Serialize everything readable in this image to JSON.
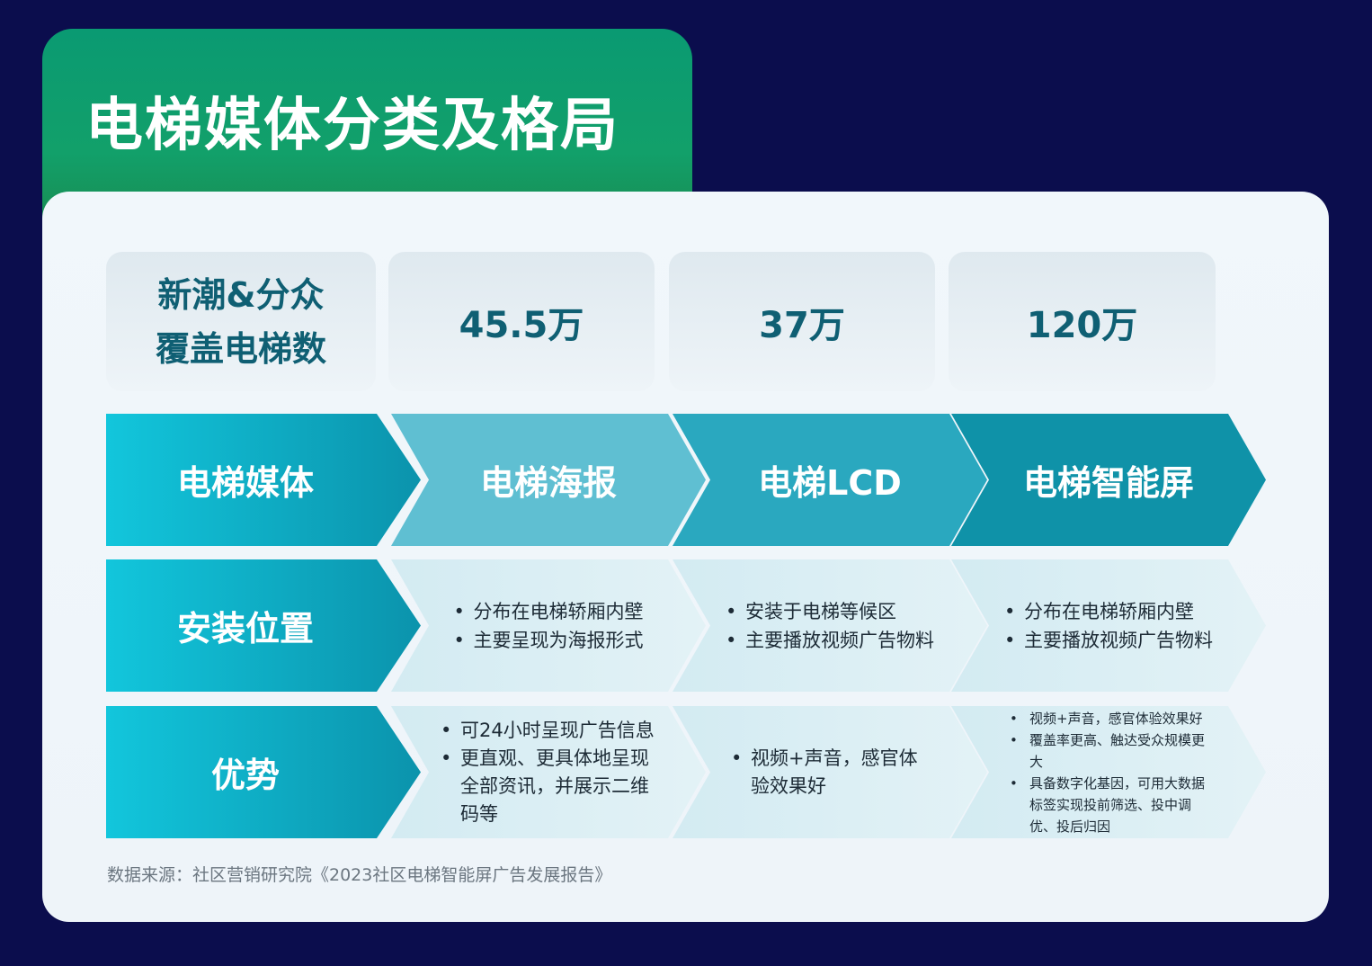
{
  "title": "电梯媒体分类及格局",
  "coverage": {
    "label_line1": "新潮&分众",
    "label_line2": "覆盖电梯数",
    "values": [
      "45.5万",
      "37万",
      "120万"
    ]
  },
  "rows": [
    {
      "header": "电梯媒体",
      "cells": [
        {
          "name": "电梯海报"
        },
        {
          "name": "电梯LCD"
        },
        {
          "name": "电梯智能屏"
        }
      ]
    },
    {
      "header": "安装位置",
      "cells": [
        [
          "分布在电梯轿厢内壁",
          "主要呈现为海报形式"
        ],
        [
          "安装于电梯等候区",
          "主要播放视频广告物料"
        ],
        [
          "分布在电梯轿厢内壁",
          "主要播放视频广告物料"
        ]
      ]
    },
    {
      "header": "优势",
      "cells": [
        [
          "可24小时呈现广告信息",
          "更直观、更具体地呈现全部资讯，并展示二维码等"
        ],
        [
          "视频+声音，感官体验效果好"
        ],
        [
          "视频+声音，感官体验效果好",
          "覆盖率更高、触达受众规模更大",
          "具备数字化基因，可用大数据标签实现投前筛选、投中调优、投后归因"
        ]
      ]
    }
  ],
  "source": "数据来源：社区营销研究院《2023社区电梯智能屏广告发展报告》",
  "colors": {
    "background": "#0b0d4d",
    "title_tab": "#0a9a72",
    "accent": "#0b93ac"
  }
}
